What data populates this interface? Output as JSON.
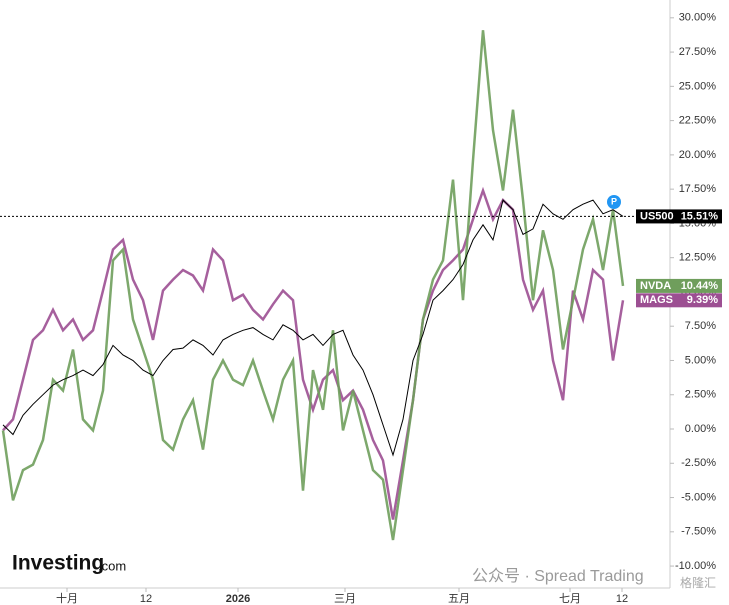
{
  "chart_data": {
    "type": "line",
    "series": [
      {
        "name": "US500",
        "color": "#000000",
        "last_value_label": "15.51%",
        "values": [
          0.3,
          -0.4,
          1.0,
          1.8,
          2.5,
          3.2,
          3.6,
          3.9,
          4.3,
          3.9,
          4.7,
          6.1,
          5.4,
          5.0,
          4.3,
          3.9,
          5.0,
          5.8,
          5.9,
          6.5,
          6.1,
          5.4,
          6.5,
          6.9,
          7.2,
          7.4,
          6.9,
          6.5,
          7.6,
          7.2,
          6.5,
          6.9,
          6.1,
          6.9,
          7.2,
          5.4,
          4.3,
          2.5,
          0.3,
          -1.9,
          0.7,
          5.0,
          6.9,
          9.4,
          10.1,
          10.9,
          12.0,
          13.8,
          14.9,
          13.8,
          16.7,
          16.0,
          14.2,
          14.6,
          16.4,
          15.7,
          15.3,
          16.0,
          16.4,
          16.7,
          15.7,
          16.0,
          15.51
        ]
      },
      {
        "name": "NVDA",
        "color": "#6f9e5c",
        "last_value_label": "10.44%",
        "values": [
          -0.1,
          -5.2,
          -3.0,
          -2.6,
          -0.8,
          3.6,
          2.8,
          5.8,
          0.7,
          -0.1,
          2.8,
          12.3,
          13.1,
          8.0,
          5.8,
          3.6,
          -0.8,
          -1.5,
          0.7,
          2.1,
          -1.5,
          3.6,
          5.0,
          3.6,
          3.2,
          5.0,
          2.8,
          0.7,
          3.6,
          5.0,
          -4.5,
          4.3,
          1.4,
          7.2,
          -0.1,
          2.8,
          -0.1,
          -3.0,
          -3.7,
          -8.1,
          -3.0,
          2.1,
          8.0,
          10.9,
          12.3,
          18.2,
          9.4,
          19.6,
          29.1,
          21.8,
          17.4,
          23.3,
          16.7,
          9.4,
          14.5,
          11.6,
          5.8,
          9.4,
          13.1,
          15.3,
          11.6,
          16.0,
          10.44
        ]
      },
      {
        "name": "MAGS",
        "color": "#9c4f92",
        "last_value_label": "9.39%",
        "values": [
          -0.1,
          0.7,
          3.6,
          6.5,
          7.2,
          8.7,
          7.2,
          8.0,
          6.5,
          7.2,
          10.1,
          13.1,
          13.8,
          10.9,
          9.4,
          6.5,
          10.1,
          10.9,
          11.6,
          11.2,
          10.1,
          13.1,
          12.3,
          9.4,
          9.8,
          8.7,
          8.0,
          9.1,
          10.1,
          9.4,
          3.6,
          1.4,
          3.6,
          4.3,
          2.1,
          2.8,
          1.4,
          -0.8,
          -2.3,
          -6.6,
          -2.3,
          2.1,
          8.0,
          10.1,
          11.6,
          12.3,
          13.1,
          15.3,
          17.4,
          15.3,
          16.7,
          16.0,
          10.9,
          8.7,
          10.1,
          5.0,
          2.1,
          10.1,
          8.0,
          11.6,
          10.9,
          5.0,
          9.39
        ]
      }
    ],
    "xlim": [
      -0.3,
      66.5
    ],
    "xticks": [
      {
        "value": 6.4,
        "label": "十月"
      },
      {
        "value": 14.3,
        "label": "12"
      },
      {
        "value": 23.5,
        "label": "2026"
      },
      {
        "value": 34.2,
        "label": "三月"
      },
      {
        "value": 45.6,
        "label": "五月"
      },
      {
        "value": 56.7,
        "label": "七月"
      },
      {
        "value": 61.9,
        "label": "12"
      }
    ],
    "ylim": [
      -11.6,
      31.3
    ],
    "yticks": [
      {
        "value": 30,
        "label": "30.00%"
      },
      {
        "value": 27.5,
        "label": "27.50%"
      },
      {
        "value": 25,
        "label": "25.00%"
      },
      {
        "value": 22.5,
        "label": "22.50%"
      },
      {
        "value": 20,
        "label": "20.00%"
      },
      {
        "value": 17.5,
        "label": "17.50%"
      },
      {
        "value": 15,
        "label": "15.00%"
      },
      {
        "value": 12.5,
        "label": "12.50%"
      },
      {
        "value": 10,
        "label": "10.00%"
      },
      {
        "value": 7.5,
        "label": "7.50%"
      },
      {
        "value": 5,
        "label": "5.00%"
      },
      {
        "value": 2.5,
        "label": "2.50%"
      },
      {
        "value": 0,
        "label": "0.00%"
      },
      {
        "value": -2.5,
        "label": "-2.50%"
      },
      {
        "value": -5,
        "label": "-5.00%"
      },
      {
        "value": -7.5,
        "label": "-7.50%"
      },
      {
        "value": -10,
        "label": "-10.00%"
      }
    ],
    "branding": "Investing",
    "branding_suffix": ".com",
    "watermark": "公众号 · Spread Trading",
    "watermark_logo": "格隆汇"
  }
}
